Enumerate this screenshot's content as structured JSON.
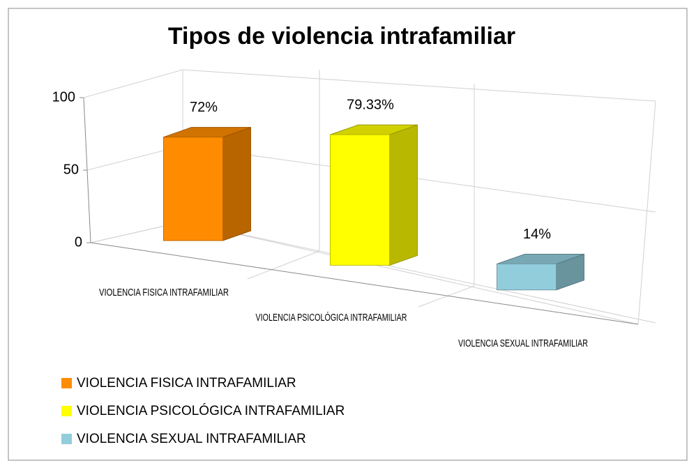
{
  "chart_data": {
    "type": "bar3d",
    "title": "Tipos de violencia intrafamiliar",
    "categories": [
      "VIOLENCIA FISICA INTRAFAMILIAR",
      "VIOLENCIA PSICOLÓGICA INTRAFAMILIAR",
      "VIOLENCIA SEXUAL INTRAFAMILIAR"
    ],
    "values": [
      72,
      79.33,
      14
    ],
    "value_labels": [
      "72%",
      "79.33%",
      "14%"
    ],
    "colors": [
      "#ff8c00",
      "#ffff00",
      "#92cddc"
    ],
    "ylim": [
      0,
      100
    ],
    "yticks": [
      0,
      50,
      100
    ],
    "grid": true,
    "legend": "bottom-left"
  }
}
